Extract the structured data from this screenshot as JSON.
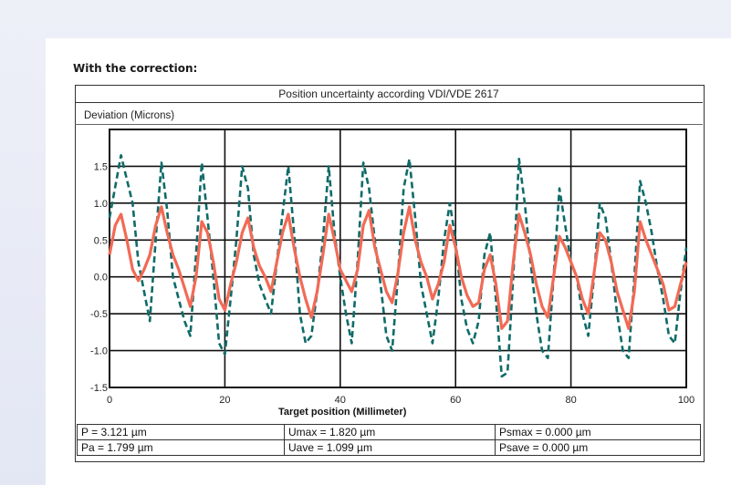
{
  "heading": "With the correction:",
  "chart_data": {
    "type": "line",
    "title": "Position uncertainty according VDI/VDE 2617",
    "ylabel": "Deviation (Microns)",
    "xlabel": "Target position (Millimeter)",
    "xlim": [
      0,
      100
    ],
    "ylim": [
      -1.5,
      2.0
    ],
    "x_ticks": [
      "0",
      "20",
      "40",
      "60",
      "80",
      "100"
    ],
    "y_ticks": [
      "1.5",
      "1.0",
      "0.5",
      "0.0",
      "-0.5",
      "-1.0",
      "-1.5"
    ],
    "grid": true,
    "series": [
      {
        "color": "#0f6b68",
        "style": "dashed",
        "points": [
          [
            0,
            0.8
          ],
          [
            2,
            1.65
          ],
          [
            4,
            1.0
          ],
          [
            5,
            0.2
          ],
          [
            6,
            -0.2
          ],
          [
            7,
            -0.6
          ],
          [
            8,
            0.5
          ],
          [
            9,
            1.55
          ],
          [
            10,
            0.9
          ],
          [
            11,
            0.0
          ],
          [
            12,
            -0.3
          ],
          [
            13,
            -0.6
          ],
          [
            14,
            -0.8
          ],
          [
            15,
            0.3
          ],
          [
            16,
            1.55
          ],
          [
            17,
            0.8
          ],
          [
            18,
            0.0
          ],
          [
            19,
            -0.9
          ],
          [
            20,
            -1.05
          ],
          [
            21,
            -0.3
          ],
          [
            22,
            0.5
          ],
          [
            23,
            1.5
          ],
          [
            24,
            1.2
          ],
          [
            25,
            0.3
          ],
          [
            26,
            -0.1
          ],
          [
            27,
            -0.3
          ],
          [
            28,
            -0.5
          ],
          [
            29,
            0.2
          ],
          [
            31,
            1.5
          ],
          [
            32,
            0.6
          ],
          [
            33,
            -0.5
          ],
          [
            34,
            -0.9
          ],
          [
            35,
            -0.8
          ],
          [
            36,
            -0.2
          ],
          [
            37,
            0.5
          ],
          [
            38,
            1.5
          ],
          [
            39,
            0.6
          ],
          [
            40,
            0.0
          ],
          [
            41,
            -0.5
          ],
          [
            42,
            -0.9
          ],
          [
            43,
            0.2
          ],
          [
            44,
            1.55
          ],
          [
            45,
            1.2
          ],
          [
            46,
            0.5
          ],
          [
            47,
            -0.1
          ],
          [
            48,
            -0.8
          ],
          [
            49,
            -1.0
          ],
          [
            50,
            0.0
          ],
          [
            51,
            1.2
          ],
          [
            52,
            1.6
          ],
          [
            53,
            0.8
          ],
          [
            54,
            -0.1
          ],
          [
            55,
            -0.5
          ],
          [
            56,
            -0.9
          ],
          [
            57,
            -0.3
          ],
          [
            58,
            0.5
          ],
          [
            59,
            1.0
          ],
          [
            60,
            0.5
          ],
          [
            61,
            -0.3
          ],
          [
            62,
            -0.7
          ],
          [
            63,
            -0.9
          ],
          [
            64,
            -0.6
          ],
          [
            65,
            0.3
          ],
          [
            66,
            0.6
          ],
          [
            67,
            -0.3
          ],
          [
            68,
            -1.35
          ],
          [
            69,
            -1.3
          ],
          [
            70,
            0.0
          ],
          [
            71,
            1.6
          ],
          [
            72,
            1.0
          ],
          [
            73,
            0.2
          ],
          [
            74,
            -0.5
          ],
          [
            75,
            -1.0
          ],
          [
            76,
            -1.1
          ],
          [
            77,
            0.0
          ],
          [
            78,
            1.2
          ],
          [
            79,
            0.7
          ],
          [
            80,
            0.2
          ],
          [
            81,
            0.0
          ],
          [
            82,
            -0.5
          ],
          [
            83,
            -0.8
          ],
          [
            84,
            0.0
          ],
          [
            85,
            1.0
          ],
          [
            86,
            0.8
          ],
          [
            87,
            0.2
          ],
          [
            88,
            -0.5
          ],
          [
            89,
            -1.0
          ],
          [
            90,
            -1.1
          ],
          [
            91,
            0.0
          ],
          [
            92,
            1.3
          ],
          [
            93,
            1.0
          ],
          [
            94,
            0.6
          ],
          [
            95,
            0.1
          ],
          [
            96,
            -0.3
          ],
          [
            97,
            -0.8
          ],
          [
            98,
            -0.9
          ],
          [
            99,
            -0.2
          ],
          [
            100,
            0.4
          ]
        ]
      },
      {
        "color": "#f26a55",
        "style": "solid",
        "points": [
          [
            0,
            0.3
          ],
          [
            1,
            0.7
          ],
          [
            2,
            0.85
          ],
          [
            3,
            0.5
          ],
          [
            4,
            0.1
          ],
          [
            5,
            -0.05
          ],
          [
            6,
            0.1
          ],
          [
            7,
            0.3
          ],
          [
            8,
            0.7
          ],
          [
            9,
            0.95
          ],
          [
            10,
            0.6
          ],
          [
            11,
            0.3
          ],
          [
            12,
            0.1
          ],
          [
            13,
            -0.15
          ],
          [
            14,
            -0.4
          ],
          [
            15,
            0.0
          ],
          [
            16,
            0.75
          ],
          [
            17,
            0.6
          ],
          [
            18,
            0.2
          ],
          [
            19,
            -0.3
          ],
          [
            20,
            -0.45
          ],
          [
            21,
            -0.1
          ],
          [
            22,
            0.2
          ],
          [
            23,
            0.6
          ],
          [
            24,
            0.8
          ],
          [
            25,
            0.4
          ],
          [
            26,
            0.15
          ],
          [
            27,
            0.0
          ],
          [
            28,
            -0.2
          ],
          [
            29,
            0.2
          ],
          [
            30,
            0.6
          ],
          [
            31,
            0.85
          ],
          [
            32,
            0.4
          ],
          [
            33,
            0.0
          ],
          [
            34,
            -0.3
          ],
          [
            35,
            -0.55
          ],
          [
            36,
            -0.2
          ],
          [
            37,
            0.3
          ],
          [
            38,
            0.85
          ],
          [
            39,
            0.5
          ],
          [
            40,
            0.1
          ],
          [
            41,
            -0.05
          ],
          [
            42,
            -0.2
          ],
          [
            43,
            0.1
          ],
          [
            44,
            0.7
          ],
          [
            45,
            0.9
          ],
          [
            46,
            0.4
          ],
          [
            47,
            0.1
          ],
          [
            48,
            -0.2
          ],
          [
            49,
            -0.35
          ],
          [
            50,
            0.05
          ],
          [
            51,
            0.6
          ],
          [
            52,
            0.95
          ],
          [
            53,
            0.5
          ],
          [
            54,
            0.2
          ],
          [
            55,
            0.0
          ],
          [
            56,
            -0.3
          ],
          [
            57,
            -0.1
          ],
          [
            58,
            0.2
          ],
          [
            59,
            0.7
          ],
          [
            60,
            0.4
          ],
          [
            61,
            0.0
          ],
          [
            62,
            -0.25
          ],
          [
            63,
            -0.4
          ],
          [
            64,
            -0.35
          ],
          [
            65,
            0.1
          ],
          [
            66,
            0.3
          ],
          [
            67,
            -0.1
          ],
          [
            68,
            -0.7
          ],
          [
            69,
            -0.6
          ],
          [
            70,
            0.2
          ],
          [
            71,
            0.85
          ],
          [
            72,
            0.6
          ],
          [
            73,
            0.3
          ],
          [
            74,
            -0.1
          ],
          [
            75,
            -0.4
          ],
          [
            76,
            -0.55
          ],
          [
            77,
            0.0
          ],
          [
            78,
            0.55
          ],
          [
            79,
            0.4
          ],
          [
            80,
            0.2
          ],
          [
            81,
            0.0
          ],
          [
            82,
            -0.3
          ],
          [
            83,
            -0.5
          ],
          [
            84,
            0.05
          ],
          [
            85,
            0.6
          ],
          [
            86,
            0.5
          ],
          [
            87,
            0.2
          ],
          [
            88,
            -0.2
          ],
          [
            89,
            -0.45
          ],
          [
            90,
            -0.7
          ],
          [
            91,
            -0.2
          ],
          [
            92,
            0.75
          ],
          [
            93,
            0.5
          ],
          [
            94,
            0.3
          ],
          [
            95,
            0.1
          ],
          [
            96,
            -0.1
          ],
          [
            97,
            -0.45
          ],
          [
            98,
            -0.4
          ],
          [
            99,
            -0.1
          ],
          [
            100,
            0.2
          ]
        ]
      }
    ]
  },
  "stats": [
    [
      "P = 3.121 µm",
      "Umax = 1.820 µm",
      "Psmax = 0.000 µm"
    ],
    [
      "Pa = 1.799 µm",
      "Uave = 1.099 µm",
      "Psave = 0.000 µm"
    ]
  ]
}
